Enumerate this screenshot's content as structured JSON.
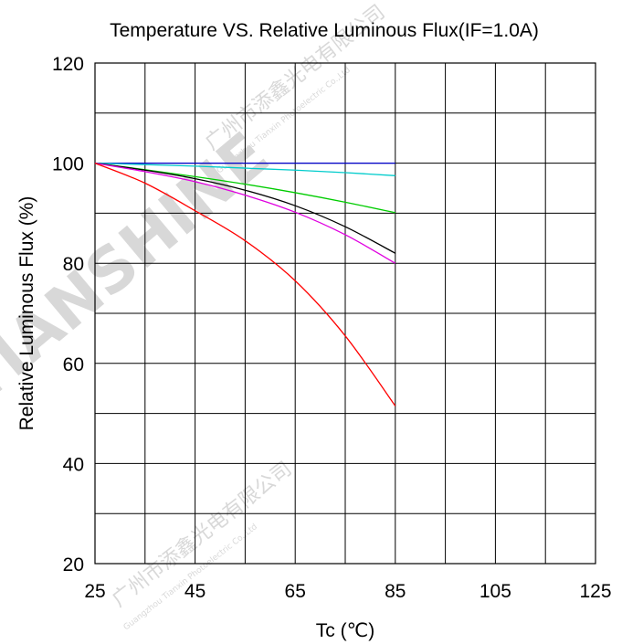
{
  "chart_data": {
    "type": "line",
    "title": "Temperature VS. Relative Luminous Flux(IF=1.0A)",
    "xlabel": "Tc (℃)",
    "ylabel": "Relative Luminous Flux (%)",
    "xlim": [
      25,
      125
    ],
    "ylim": [
      20,
      120
    ],
    "x_ticks": [
      "25",
      "45",
      "65",
      "85",
      "105",
      "125"
    ],
    "y_ticks": [
      "20",
      "40",
      "60",
      "80",
      "100",
      "120"
    ],
    "grid": true,
    "x": [
      25,
      35,
      45,
      55,
      65,
      75,
      85
    ],
    "series": [
      {
        "color": "#0000cc",
        "values": [
          100,
          100,
          100,
          100,
          100,
          100,
          100
        ]
      },
      {
        "color": "#00cccc",
        "values": [
          100,
          99.7,
          99.4,
          99.0,
          98.6,
          98.1,
          97.5
        ]
      },
      {
        "color": "#00cc00",
        "values": [
          100,
          98.7,
          97.3,
          95.8,
          94.1,
          92.2,
          90.1
        ]
      },
      {
        "color": "#000000",
        "values": [
          100,
          98.6,
          96.9,
          94.6,
          91.5,
          87.3,
          82.0
        ]
      },
      {
        "color": "#e000e0",
        "values": [
          100,
          98.3,
          96.3,
          93.6,
          90.2,
          85.7,
          80.0
        ]
      },
      {
        "color": "#ff0000",
        "values": [
          100,
          96.0,
          90.5,
          84.5,
          76.5,
          65.5,
          51.5
        ]
      }
    ]
  },
  "watermark": {
    "brand": "TIANSHINE",
    "company_cn": "广州市添鑫光电有限公司",
    "company_en": "Guangzhou Tianxin Photoelectric Co.,Ltd"
  }
}
